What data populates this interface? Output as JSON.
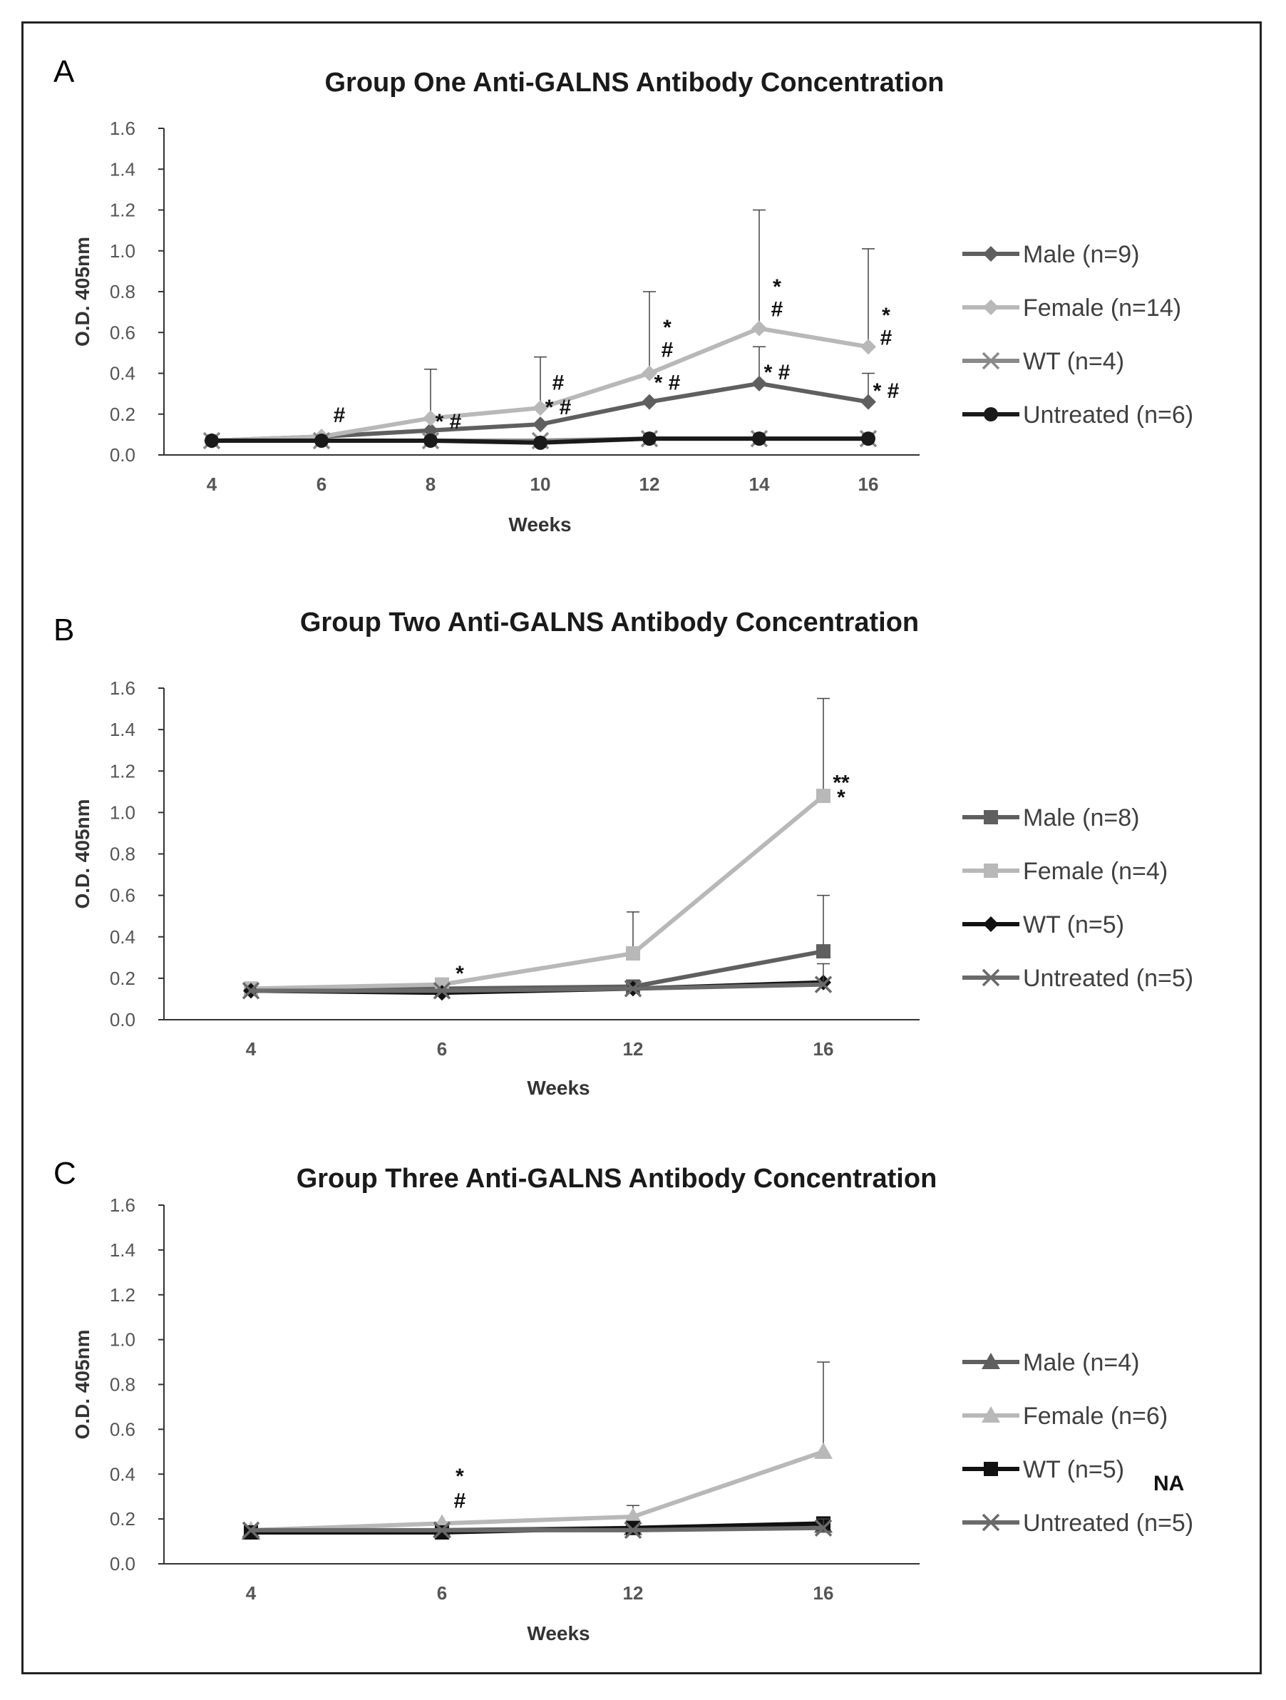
{
  "chart_data": [
    {
      "type": "line",
      "panel": "A",
      "title": "Group One Anti-GALNS Antibody Concentration",
      "xlabel": "Weeks",
      "ylabel": "O.D. 405nm",
      "ylim": [
        0,
        1.6
      ],
      "yticks": [
        "0.0",
        "0.2",
        "0.4",
        "0.6",
        "0.8",
        "1.0",
        "1.2",
        "1.4",
        "1.6"
      ],
      "categories": [
        "4",
        "6",
        "8",
        "10",
        "12",
        "14",
        "16"
      ],
      "legend_position": "right",
      "series": [
        {
          "name": "Male (n=9)",
          "color": "#5f5f5f",
          "marker": "diamond",
          "values": [
            0.07,
            0.09,
            0.12,
            0.15,
            0.26,
            0.35,
            0.26
          ],
          "errors": [
            0,
            0,
            0,
            0,
            0,
            0.18,
            0.14
          ]
        },
        {
          "name": "Female (n=14)",
          "color": "#b8b8b8",
          "marker": "diamond",
          "values": [
            0.07,
            0.09,
            0.18,
            0.23,
            0.4,
            0.62,
            0.53
          ],
          "errors": [
            0,
            0,
            0.24,
            0.25,
            0.4,
            0.58,
            0.48
          ]
        },
        {
          "name": "WT (n=4)",
          "color": "#8a8a8a",
          "marker": "x",
          "values": [
            0.07,
            0.07,
            0.07,
            0.07,
            0.08,
            0.08,
            0.08
          ],
          "errors": [
            0,
            0,
            0,
            0,
            0,
            0,
            0
          ]
        },
        {
          "name": "Untreated (n=6)",
          "color": "#1a1a1a",
          "marker": "circle",
          "values": [
            0.07,
            0.07,
            0.07,
            0.06,
            0.08,
            0.08,
            0.08
          ],
          "errors": [
            0,
            0,
            0,
            0,
            0,
            0,
            0
          ]
        }
      ],
      "annotations": [
        {
          "x": "6",
          "y": 0.16,
          "text": "#"
        },
        {
          "x": "8",
          "y": 0.13,
          "text": "* #"
        },
        {
          "x": "10",
          "y": 0.32,
          "text": "#"
        },
        {
          "x": "10",
          "y": 0.2,
          "text": "* #"
        },
        {
          "x": "12",
          "y": 0.59,
          "text": "*"
        },
        {
          "x": "12",
          "y": 0.48,
          "text": "#"
        },
        {
          "x": "12",
          "y": 0.32,
          "text": "* #"
        },
        {
          "x": "14",
          "y": 0.79,
          "text": "*"
        },
        {
          "x": "14",
          "y": 0.68,
          "text": "#"
        },
        {
          "x": "14",
          "y": 0.37,
          "text": "* #"
        },
        {
          "x": "16",
          "y": 0.65,
          "text": "*"
        },
        {
          "x": "16",
          "y": 0.54,
          "text": "#"
        },
        {
          "x": "16",
          "y": 0.28,
          "text": "* #"
        }
      ]
    },
    {
      "type": "line",
      "panel": "B",
      "title": "Group Two Anti-GALNS Antibody Concentration",
      "xlabel": "Weeks",
      "ylabel": "O.D. 405nm",
      "ylim": [
        0,
        1.6
      ],
      "yticks": [
        "0.0",
        "0.2",
        "0.4",
        "0.6",
        "0.8",
        "1.0",
        "1.2",
        "1.4",
        "1.6"
      ],
      "categories": [
        "4",
        "6",
        "12",
        "16"
      ],
      "legend_position": "right",
      "series": [
        {
          "name": "Male (n=8)",
          "color": "#5f5f5f",
          "marker": "square",
          "values": [
            0.15,
            0.15,
            0.16,
            0.33
          ],
          "errors": [
            0,
            0,
            0,
            0.27
          ]
        },
        {
          "name": "Female (n=4)",
          "color": "#b8b8b8",
          "marker": "square",
          "values": [
            0.15,
            0.17,
            0.32,
            1.08
          ],
          "errors": [
            0,
            0,
            0.2,
            0.47
          ]
        },
        {
          "name": "WT (n=5)",
          "color": "#111111",
          "marker": "diamond",
          "values": [
            0.14,
            0.13,
            0.15,
            0.18
          ],
          "errors": [
            0,
            0,
            0,
            0
          ]
        },
        {
          "name": "Untreated (n=5)",
          "color": "#6a6a6a",
          "marker": "x",
          "values": [
            0.14,
            0.14,
            0.15,
            0.17
          ],
          "errors": [
            0,
            0,
            0,
            0.1
          ]
        }
      ],
      "annotations": [
        {
          "x": "6",
          "y": 0.19,
          "text": "*"
        },
        {
          "x": "16",
          "y": 1.11,
          "text": "**"
        },
        {
          "x": "16",
          "y": 1.04,
          "text": "*"
        }
      ]
    },
    {
      "type": "line",
      "panel": "C",
      "title": "Group Three Anti-GALNS Antibody Concentration",
      "xlabel": "Weeks",
      "ylabel": "O.D. 405nm",
      "ylim": [
        0,
        1.6
      ],
      "yticks": [
        "0.0",
        "0.2",
        "0.4",
        "0.6",
        "0.8",
        "1.0",
        "1.2",
        "1.4",
        "1.6"
      ],
      "categories": [
        "4",
        "6",
        "12",
        "16"
      ],
      "legend_position": "right",
      "series": [
        {
          "name": "Male (n=4)",
          "color": "#5f5f5f",
          "marker": "triangle",
          "values": [
            0.14,
            0.15,
            0.16,
            0.17
          ],
          "errors": [
            0,
            0,
            0,
            0
          ]
        },
        {
          "name": "Female (n=6)",
          "color": "#b8b8b8",
          "marker": "triangle",
          "values": [
            0.15,
            0.18,
            0.21,
            0.5
          ],
          "errors": [
            0,
            0,
            0.05,
            0.4
          ]
        },
        {
          "name": "WT (n=5)",
          "color": "#111111",
          "marker": "square",
          "values": [
            0.14,
            0.14,
            0.16,
            0.18
          ],
          "errors": [
            0,
            0,
            0,
            0
          ]
        },
        {
          "name": "Untreated (n=5)",
          "color": "#6a6a6a",
          "marker": "x",
          "values": [
            0.15,
            0.15,
            0.15,
            0.16
          ],
          "errors": [
            0,
            0,
            0,
            0.04
          ]
        }
      ],
      "legend_note": {
        "series": "WT (n=5)",
        "text": "NA"
      },
      "annotations": [
        {
          "x": "6",
          "y": 0.36,
          "text": "*"
        },
        {
          "x": "6",
          "y": 0.25,
          "text": "#"
        }
      ]
    }
  ]
}
